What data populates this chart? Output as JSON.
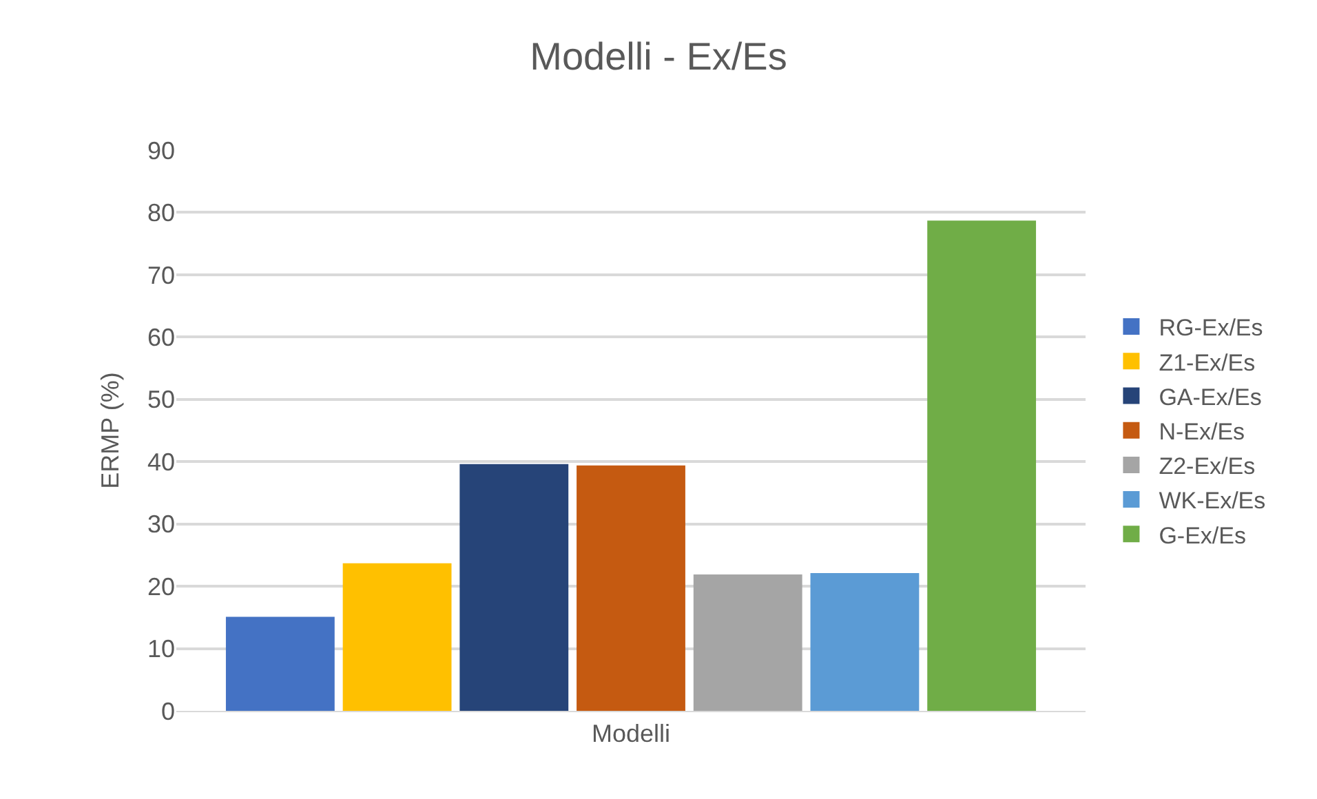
{
  "chart_data": {
    "type": "bar",
    "title": "Modelli - Ex/Es",
    "ylabel": "ERMP (%)",
    "categories": [
      "Modelli"
    ],
    "series": [
      {
        "name": "RG-Ex/Es",
        "color": "#4472c4",
        "values": [
          15.1
        ]
      },
      {
        "name": "Z1-Ex/Es",
        "color": "#ffc000",
        "values": [
          23.7
        ]
      },
      {
        "name": "GA-Ex/Es",
        "color": "#264478",
        "values": [
          39.6
        ]
      },
      {
        "name": "N-Ex/Es",
        "color": "#c55a11",
        "values": [
          39.4
        ]
      },
      {
        "name": "Z2-Ex/Es",
        "color": "#a5a5a5",
        "values": [
          21.9
        ]
      },
      {
        "name": "WK-Ex/Es",
        "color": "#5b9bd5",
        "values": [
          22.1
        ]
      },
      {
        "name": "G-Ex/Es",
        "color": "#70ad47",
        "values": [
          78.7
        ]
      }
    ],
    "ylim": [
      0,
      90
    ],
    "yticks": [
      0,
      10,
      20,
      30,
      40,
      50,
      60,
      70,
      80,
      90
    ],
    "grid": "y",
    "legend": "right"
  }
}
